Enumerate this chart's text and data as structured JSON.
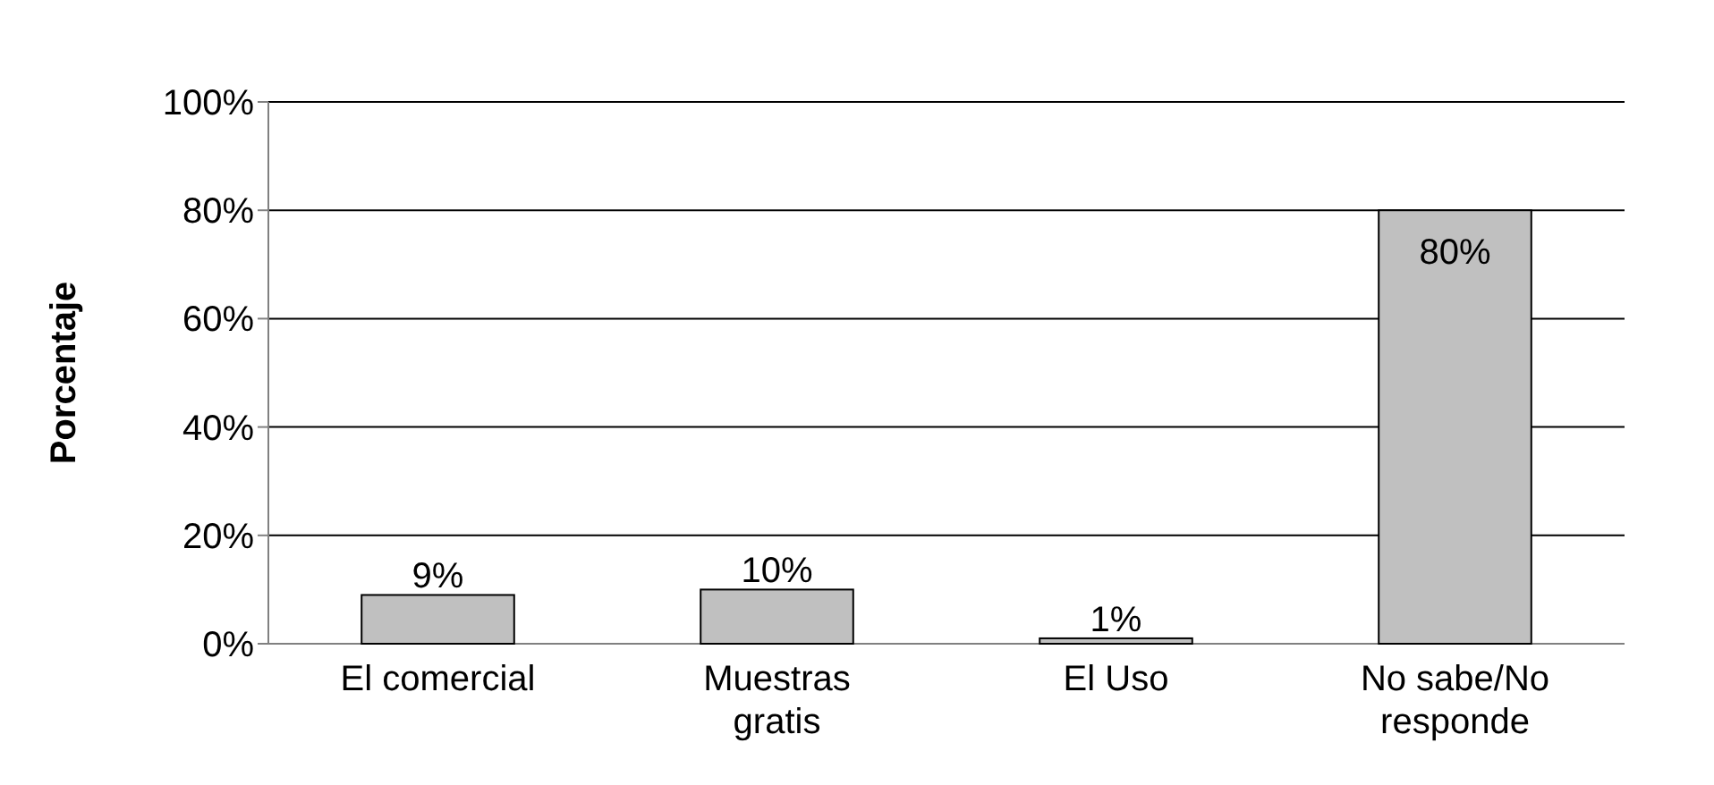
{
  "chart_data": {
    "type": "bar",
    "ylabel": "Porcentaje",
    "categories": [
      "El comercial",
      "Muestras gratis",
      "El Uso",
      "No sabe/No responde"
    ],
    "values": [
      9,
      10,
      1,
      80
    ],
    "value_labels": [
      "9%",
      "10%",
      "1%",
      "80%"
    ],
    "color": "#c0c0c0",
    "ylim": [
      0,
      100
    ],
    "yticks": [
      {
        "value": 0,
        "label": "0%"
      },
      {
        "value": 20,
        "label": "20%"
      },
      {
        "value": 40,
        "label": "40%"
      },
      {
        "value": 60,
        "label": "60%"
      },
      {
        "value": 80,
        "label": "80%"
      },
      {
        "value": 100,
        "label": "100%"
      }
    ],
    "grid": "y"
  }
}
